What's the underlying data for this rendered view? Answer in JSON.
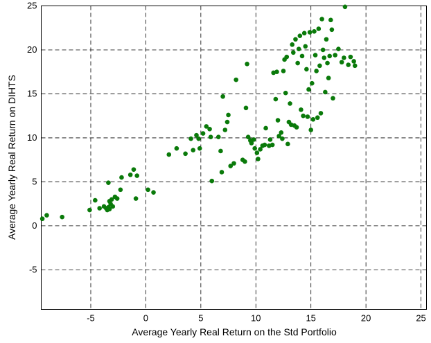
{
  "chart_data": {
    "type": "scatter",
    "title": "",
    "xlabel": "Average Yearly Real Return on the Std Portfolio",
    "ylabel": "Average Yearly Real Return on DIHTS",
    "xlim": [
      -9.5,
      25.5
    ],
    "ylim": [
      -9.5,
      25
    ],
    "xticks": [
      -5,
      0,
      5,
      10,
      15,
      20,
      25
    ],
    "yticks": [
      -5,
      0,
      5,
      10,
      15,
      20,
      25
    ],
    "grid": true,
    "marker_color": "#0a7a0a",
    "series": [
      {
        "points": [
          [
            -9.4,
            0.8
          ],
          [
            -9.0,
            1.2
          ],
          [
            -7.6,
            1.0
          ],
          [
            -5.1,
            1.8
          ],
          [
            -4.6,
            2.9
          ],
          [
            -4.2,
            2.0
          ],
          [
            -3.8,
            2.2
          ],
          [
            -3.6,
            2.0
          ],
          [
            -3.5,
            1.8
          ],
          [
            -3.4,
            2.1
          ],
          [
            -3.3,
            1.9
          ],
          [
            -3.2,
            2.5
          ],
          [
            -3.3,
            2.8
          ],
          [
            -3.1,
            3.0
          ],
          [
            -3.0,
            2.2
          ],
          [
            -3.4,
            4.9
          ],
          [
            -2.8,
            3.3
          ],
          [
            -2.6,
            3.1
          ],
          [
            -2.3,
            4.1
          ],
          [
            -2.2,
            5.5
          ],
          [
            -1.4,
            5.8
          ],
          [
            -1.1,
            6.4
          ],
          [
            -0.8,
            5.7
          ],
          [
            -0.9,
            3.1
          ],
          [
            0.2,
            4.1
          ],
          [
            0.7,
            3.8
          ],
          [
            2.1,
            8.1
          ],
          [
            2.8,
            8.8
          ],
          [
            3.6,
            8.2
          ],
          [
            4.1,
            9.9
          ],
          [
            4.3,
            8.6
          ],
          [
            4.6,
            10.3
          ],
          [
            4.8,
            9.9
          ],
          [
            4.9,
            8.8
          ],
          [
            5.2,
            10.5
          ],
          [
            5.5,
            11.3
          ],
          [
            5.8,
            11.0
          ],
          [
            5.9,
            10.1
          ],
          [
            6.0,
            5.1
          ],
          [
            6.6,
            10.1
          ],
          [
            7.2,
            10.9
          ],
          [
            7.4,
            11.8
          ],
          [
            7.5,
            12.6
          ],
          [
            7.0,
            14.7
          ],
          [
            6.8,
            8.5
          ],
          [
            6.9,
            6.1
          ],
          [
            7.7,
            6.8
          ],
          [
            8.0,
            7.1
          ],
          [
            8.2,
            16.6
          ],
          [
            8.8,
            7.5
          ],
          [
            9.0,
            7.3
          ],
          [
            9.1,
            13.4
          ],
          [
            9.2,
            18.4
          ],
          [
            9.3,
            10.1
          ],
          [
            9.5,
            9.7
          ],
          [
            9.6,
            9.4
          ],
          [
            9.8,
            9.8
          ],
          [
            9.9,
            8.8
          ],
          [
            10.1,
            8.3
          ],
          [
            10.2,
            7.6
          ],
          [
            10.4,
            8.7
          ],
          [
            10.6,
            9.1
          ],
          [
            10.9,
            11.1
          ],
          [
            10.8,
            9.2
          ],
          [
            11.2,
            9.1
          ],
          [
            11.3,
            9.8
          ],
          [
            11.5,
            9.2
          ],
          [
            11.6,
            17.4
          ],
          [
            11.8,
            14.4
          ],
          [
            11.9,
            17.5
          ],
          [
            12.0,
            12.0
          ],
          [
            12.1,
            10.2
          ],
          [
            12.3,
            10.6
          ],
          [
            12.4,
            9.9
          ],
          [
            12.5,
            17.6
          ],
          [
            12.6,
            18.9
          ],
          [
            12.7,
            15.1
          ],
          [
            12.8,
            19.2
          ],
          [
            12.9,
            9.3
          ],
          [
            13.0,
            11.8
          ],
          [
            13.1,
            13.9
          ],
          [
            13.2,
            11.5
          ],
          [
            13.3,
            20.6
          ],
          [
            13.4,
            19.7
          ],
          [
            13.5,
            11.4
          ],
          [
            13.6,
            21.2
          ],
          [
            13.7,
            11.2
          ],
          [
            13.8,
            18.5
          ],
          [
            13.9,
            20.1
          ],
          [
            14.0,
            21.6
          ],
          [
            14.1,
            13.2
          ],
          [
            14.2,
            19.3
          ],
          [
            14.3,
            12.5
          ],
          [
            14.4,
            21.9
          ],
          [
            14.5,
            20.4
          ],
          [
            14.6,
            17.8
          ],
          [
            14.7,
            12.4
          ],
          [
            14.8,
            15.5
          ],
          [
            14.9,
            22.0
          ],
          [
            15.0,
            10.9
          ],
          [
            15.1,
            16.2
          ],
          [
            15.2,
            12.1
          ],
          [
            15.3,
            22.1
          ],
          [
            15.4,
            19.4
          ],
          [
            15.5,
            17.6
          ],
          [
            15.6,
            12.3
          ],
          [
            15.7,
            22.4
          ],
          [
            15.8,
            18.2
          ],
          [
            15.9,
            12.8
          ],
          [
            16.0,
            23.5
          ],
          [
            16.1,
            20.0
          ],
          [
            16.2,
            19.1
          ],
          [
            16.3,
            15.2
          ],
          [
            16.4,
            21.2
          ],
          [
            16.5,
            18.5
          ],
          [
            16.6,
            16.8
          ],
          [
            16.7,
            19.3
          ],
          [
            16.8,
            23.4
          ],
          [
            16.9,
            22.3
          ],
          [
            17.0,
            14.5
          ],
          [
            17.2,
            19.4
          ],
          [
            17.5,
            20.1
          ],
          [
            17.8,
            18.6
          ],
          [
            18.0,
            19.1
          ],
          [
            18.1,
            24.9
          ],
          [
            18.4,
            18.3
          ],
          [
            18.6,
            19.2
          ],
          [
            18.9,
            18.7
          ],
          [
            19.0,
            18.2
          ]
        ]
      }
    ]
  }
}
